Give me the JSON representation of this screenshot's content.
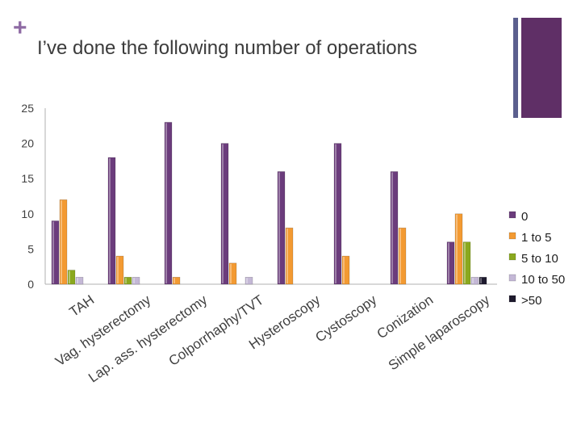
{
  "slide": {
    "plus": "+",
    "title": "I’ve done the following number of operations"
  },
  "colors": {
    "plus": "#8e6aa3",
    "axis": "#b0b0b0",
    "tick_label": "#404040"
  },
  "chart_data": {
    "type": "bar",
    "title": "",
    "xlabel": "",
    "ylabel": "",
    "ylim": [
      0,
      25
    ],
    "yticks": [
      "0",
      "5",
      "10",
      "15",
      "20",
      "25"
    ],
    "grid": false,
    "legend_position": "right",
    "categories": [
      "TAH",
      "Vag. hysterectomy",
      "Lap. ass. hysterectomy",
      "Colporrhaphy/TVT",
      "Hysteroscopy",
      "Cystoscopy",
      "Conization",
      "Simple laparoscopy"
    ],
    "series": [
      {
        "name": "0",
        "color": "#6b3c7c",
        "values": [
          9,
          18,
          23,
          20,
          16,
          20,
          16,
          6
        ]
      },
      {
        "name": "1 to 5",
        "color": "#f39a32",
        "values": [
          12,
          4,
          1,
          3,
          8,
          4,
          8,
          10
        ]
      },
      {
        "name": "5 to 10",
        "color": "#8aa81e",
        "values": [
          2,
          1,
          0,
          0,
          0,
          0,
          0,
          6
        ]
      },
      {
        "name": "10 to 50",
        "color": "#c4b8d6",
        "values": [
          1,
          1,
          0,
          1,
          0,
          0,
          0,
          1
        ]
      },
      {
        "name": ">50",
        "color": "#1e1a2e",
        "values": [
          0,
          0,
          0,
          0,
          0,
          0,
          0,
          1
        ]
      }
    ]
  }
}
